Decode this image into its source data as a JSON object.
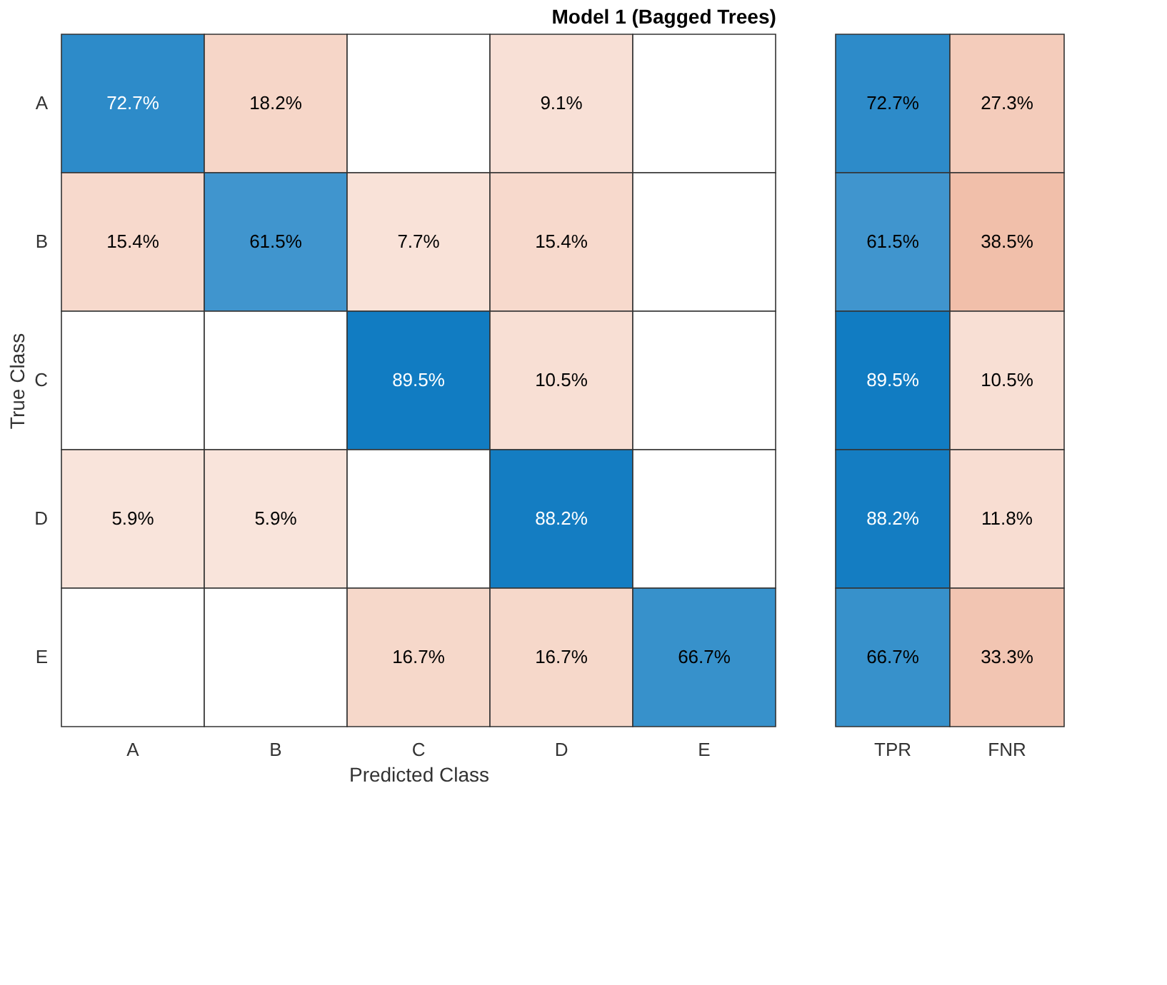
{
  "chart_data": [
    {
      "type": "heatmap",
      "title": "Model 1 (Bagged Trees)",
      "xlabel": "Predicted Class",
      "ylabel": "True Class",
      "categories": [
        "A",
        "B",
        "C",
        "D",
        "E"
      ],
      "y_categories": [
        "A",
        "B",
        "C",
        "D",
        "E"
      ],
      "cells": [
        [
          72.7,
          18.2,
          null,
          9.1,
          null
        ],
        [
          15.4,
          61.5,
          7.7,
          15.4,
          null
        ],
        [
          null,
          null,
          89.5,
          10.5,
          null
        ],
        [
          5.9,
          5.9,
          null,
          88.2,
          null
        ],
        [
          null,
          null,
          16.7,
          16.7,
          66.7
        ]
      ],
      "cell_labels": [
        [
          "72.7%",
          "18.2%",
          null,
          "9.1%",
          null
        ],
        [
          "15.4%",
          "61.5%",
          "7.7%",
          "15.4%",
          null
        ],
        [
          null,
          null,
          "89.5%",
          "10.5%",
          null
        ],
        [
          "5.9%",
          "5.9%",
          null,
          "88.2%",
          null
        ],
        [
          null,
          null,
          "16.7%",
          "16.7%",
          "66.7%"
        ]
      ]
    },
    {
      "type": "heatmap",
      "categories": [
        "TPR",
        "FNR"
      ],
      "y_categories": [
        null,
        null,
        null,
        null,
        null
      ],
      "tick_labels": "x",
      "cells": [
        [
          72.7,
          27.3
        ],
        [
          61.5,
          38.5
        ],
        [
          89.5,
          10.5
        ],
        [
          88.2,
          11.8
        ],
        [
          66.7,
          33.3
        ]
      ],
      "cell_labels": [
        [
          "72.7%",
          "27.3%"
        ],
        [
          "61.5%",
          "38.5%"
        ],
        [
          "89.5%",
          "10.5%"
        ],
        [
          "88.2%",
          "11.8%"
        ],
        [
          "66.7%",
          "33.3%"
        ]
      ]
    }
  ]
}
